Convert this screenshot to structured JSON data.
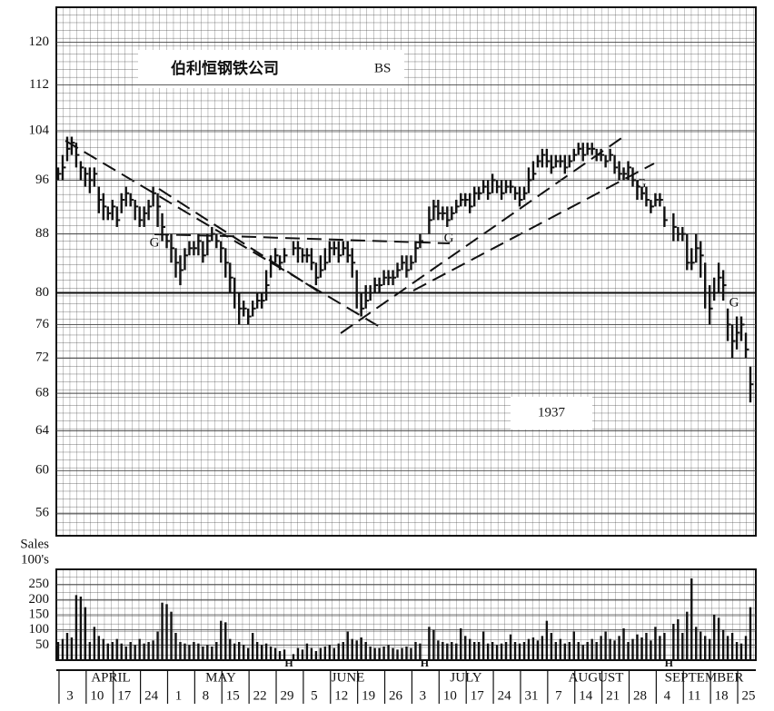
{
  "chart_data": {
    "type": "ohlc",
    "title": "伯利恒钢铁公司",
    "ticker": "BS",
    "year": "1937",
    "volume_axis_label": [
      "Sales",
      "100's"
    ],
    "annotations": [
      "G",
      "G",
      "G",
      "G"
    ],
    "holiday_label": "H",
    "months": [
      "APRIL",
      "MAY",
      "JUNE",
      "JULY",
      "AUGUST",
      "SEPTEMBER"
    ],
    "week_labels": [
      "3",
      "10",
      "17",
      "24",
      "1",
      "8",
      "15",
      "22",
      "29",
      "5",
      "12",
      "19",
      "26",
      "3",
      "10",
      "17",
      "24",
      "31",
      "7",
      "14",
      "21",
      "28",
      "4",
      "11",
      "18",
      "25"
    ],
    "log_scale": true,
    "ylim": [
      54,
      127
    ],
    "yticks": [
      56,
      60,
      64,
      68,
      72,
      76,
      80,
      88,
      96,
      104,
      112,
      120
    ],
    "emphasis_line": 80,
    "color": "#111111",
    "high": [
      98,
      100,
      103,
      103,
      102,
      99,
      98,
      98,
      98,
      95,
      94,
      92,
      93,
      92,
      94,
      95,
      94,
      93,
      92,
      92,
      93,
      95,
      94,
      91,
      88,
      88,
      86,
      85,
      86,
      87,
      87,
      88,
      87,
      88,
      89,
      88,
      87,
      86,
      84,
      82,
      80,
      79,
      78,
      79,
      80,
      80,
      83,
      85,
      86,
      85,
      86,
      null,
      87,
      87,
      86,
      86,
      86,
      84,
      85,
      86,
      87,
      87,
      87,
      87,
      87,
      86,
      83,
      80,
      81,
      81,
      82,
      82,
      83,
      83,
      83,
      84,
      85,
      85,
      85,
      87,
      88,
      null,
      92,
      93,
      93,
      92,
      92,
      92,
      93,
      94,
      94,
      94,
      95,
      95,
      96,
      96,
      97,
      96,
      96,
      96,
      96,
      95,
      95,
      95,
      98,
      99,
      100,
      101,
      101,
      100,
      100,
      100,
      100,
      100,
      101,
      102,
      102,
      102,
      102,
      101,
      101,
      100,
      101,
      100,
      99,
      98,
      99,
      98,
      96,
      95,
      95,
      93,
      94,
      94,
      92,
      null,
      91,
      89,
      89,
      88,
      86,
      88,
      87,
      84,
      81,
      82,
      84,
      83,
      78,
      76,
      77,
      77,
      75,
      71
    ],
    "low": [
      96,
      96,
      99,
      100,
      98,
      96,
      95,
      94,
      95,
      91,
      90,
      90,
      90,
      89,
      91,
      92,
      92,
      90,
      89,
      89,
      90,
      92,
      89,
      87,
      86,
      84,
      82,
      81,
      83,
      85,
      85,
      85,
      84,
      85,
      87,
      86,
      84,
      82,
      80,
      78,
      76,
      77,
      76,
      77,
      78,
      78,
      79,
      82,
      84,
      83,
      84,
      null,
      85,
      84,
      84,
      84,
      83,
      81,
      82,
      83,
      84,
      85,
      84,
      85,
      84,
      82,
      78,
      77,
      78,
      79,
      80,
      80,
      81,
      81,
      81,
      82,
      83,
      82,
      83,
      84,
      86,
      null,
      88,
      90,
      90,
      90,
      89,
      90,
      91,
      92,
      92,
      91,
      92,
      93,
      94,
      93,
      94,
      94,
      93,
      94,
      94,
      93,
      92,
      93,
      94,
      96,
      98,
      98,
      98,
      97,
      98,
      98,
      97,
      98,
      99,
      100,
      99,
      100,
      100,
      99,
      99,
      98,
      99,
      97,
      96,
      96,
      96,
      95,
      93,
      93,
      92,
      91,
      92,
      92,
      89,
      null,
      87,
      87,
      87,
      83,
      83,
      84,
      82,
      78,
      76,
      79,
      80,
      79,
      74,
      72,
      73,
      74,
      72,
      67
    ],
    "close": [
      97,
      98,
      101,
      102,
      100,
      98,
      97,
      96,
      97,
      93,
      92,
      91,
      92,
      90,
      93,
      94,
      93,
      92,
      90,
      91,
      92,
      94,
      92,
      89,
      87,
      86,
      84,
      83,
      85,
      86,
      86,
      87,
      85,
      87,
      88,
      87,
      86,
      84,
      82,
      80,
      78,
      78,
      77,
      78,
      79,
      79,
      81,
      84,
      85,
      84,
      85,
      null,
      86,
      86,
      85,
      85,
      84,
      82,
      83,
      84,
      86,
      86,
      85,
      86,
      85,
      84,
      80,
      78,
      79,
      80,
      81,
      81,
      82,
      82,
      82,
      83,
      84,
      83,
      84,
      86,
      87,
      null,
      90,
      92,
      91,
      91,
      90,
      91,
      92,
      93,
      93,
      92,
      94,
      94,
      95,
      94,
      96,
      95,
      94,
      95,
      95,
      94,
      93,
      94,
      96,
      97,
      99,
      100,
      99,
      98,
      99,
      99,
      98,
      99,
      100,
      101,
      100,
      101,
      101,
      100,
      100,
      99,
      100,
      98,
      97,
      97,
      98,
      96,
      95,
      94,
      93,
      92,
      93,
      93,
      90,
      null,
      89,
      88,
      88,
      84,
      84,
      86,
      85,
      80,
      78,
      80,
      82,
      81,
      76,
      74,
      75,
      76,
      73,
      69
    ],
    "volume": [
      60,
      70,
      90,
      75,
      215,
      210,
      175,
      60,
      110,
      80,
      70,
      55,
      60,
      70,
      55,
      45,
      60,
      50,
      70,
      55,
      60,
      65,
      95,
      190,
      185,
      160,
      90,
      60,
      55,
      50,
      60,
      55,
      45,
      50,
      45,
      60,
      130,
      125,
      70,
      55,
      60,
      50,
      40,
      90,
      60,
      50,
      55,
      45,
      40,
      30,
      35,
      null,
      20,
      40,
      35,
      55,
      40,
      30,
      40,
      45,
      50,
      40,
      55,
      60,
      95,
      70,
      65,
      75,
      60,
      45,
      40,
      40,
      45,
      50,
      40,
      35,
      40,
      45,
      40,
      60,
      55,
      null,
      110,
      100,
      65,
      60,
      55,
      60,
      55,
      105,
      80,
      70,
      60,
      60,
      95,
      55,
      60,
      50,
      55,
      60,
      85,
      60,
      55,
      60,
      70,
      75,
      65,
      80,
      130,
      90,
      60,
      70,
      55,
      60,
      95,
      60,
      50,
      60,
      70,
      60,
      80,
      95,
      70,
      65,
      80,
      105,
      60,
      70,
      85,
      75,
      90,
      65,
      110,
      80,
      90,
      null,
      120,
      135,
      90,
      160,
      270,
      110,
      95,
      80,
      70,
      150,
      140,
      100,
      80,
      90,
      60,
      55,
      80,
      175
    ],
    "volume_ylim": [
      0,
      300
    ],
    "volume_yticks": [
      50,
      100,
      150,
      200,
      250
    ]
  }
}
